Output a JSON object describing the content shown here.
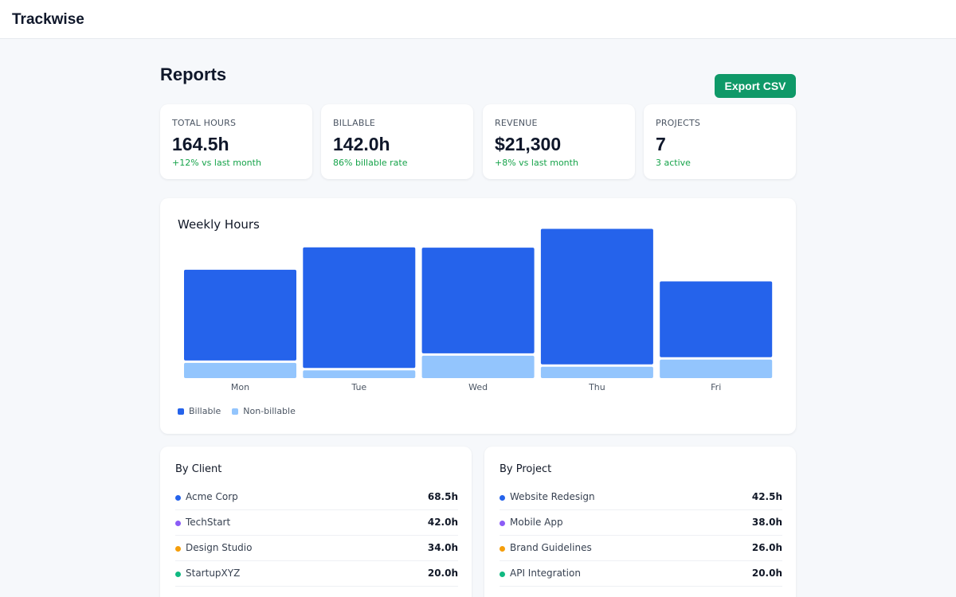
{
  "app": {
    "name": "Trackwise"
  },
  "page": {
    "title": "Reports",
    "export_label": "Export CSV"
  },
  "stats": [
    {
      "label": "TOTAL HOURS",
      "value": "164.5h",
      "delta": "+12% vs last month"
    },
    {
      "label": "BILLABLE",
      "value": "142.0h",
      "delta": "86% billable rate"
    },
    {
      "label": "REVENUE",
      "value": "$21,300",
      "delta": "+8% vs last month"
    },
    {
      "label": "PROJECTS",
      "value": "7",
      "delta": "3 active"
    }
  ],
  "chart_data": {
    "type": "bar",
    "title": "Weekly Hours",
    "categories": [
      "Mon",
      "Tue",
      "Wed",
      "Thu",
      "Fri"
    ],
    "stacked": true,
    "series": [
      {
        "name": "Billable",
        "color": "#2563eb",
        "values": [
          30.4,
          40.4,
          35.4,
          45.4,
          25.4
        ]
      },
      {
        "name": "Non-billable",
        "color": "#93c5fd",
        "values": [
          5.1,
          2.6,
          7.5,
          3.8,
          6.2
        ]
      }
    ],
    "ylim": [
      0,
      50
    ],
    "grid": false,
    "legend": "bottom-left"
  },
  "by_client": {
    "title": "By Client",
    "items": [
      {
        "name": "Acme Corp",
        "hours": "68.5h",
        "color": "#2563eb"
      },
      {
        "name": "TechStart",
        "hours": "42.0h",
        "color": "#8b5cf6"
      },
      {
        "name": "Design Studio",
        "hours": "34.0h",
        "color": "#f59e0b"
      },
      {
        "name": "StartupXYZ",
        "hours": "20.0h",
        "color": "#10b981"
      }
    ]
  },
  "by_project": {
    "title": "By Project",
    "items": [
      {
        "name": "Website Redesign",
        "hours": "42.5h",
        "color": "#2563eb"
      },
      {
        "name": "Mobile App",
        "hours": "38.0h",
        "color": "#8b5cf6"
      },
      {
        "name": "Brand Guidelines",
        "hours": "26.0h",
        "color": "#f59e0b"
      },
      {
        "name": "API Integration",
        "hours": "20.0h",
        "color": "#10b981"
      }
    ]
  }
}
